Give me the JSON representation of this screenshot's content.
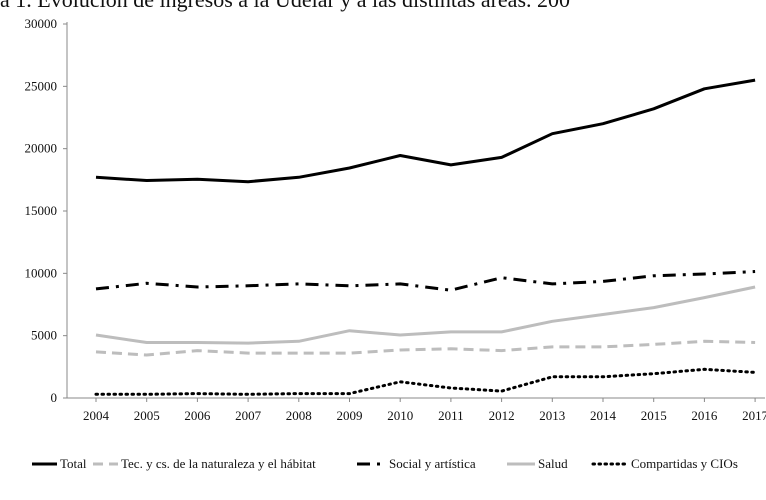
{
  "chart_data": {
    "type": "line",
    "title": "a 1. Evolución de ingresos a la Udelar y a las distintas áreas. 200",
    "xlabel": "",
    "ylabel": "",
    "ylim": [
      0,
      30000
    ],
    "yticks": [
      0,
      5000,
      10000,
      15000,
      20000,
      25000,
      30000
    ],
    "grid": false,
    "legend_position": "bottom",
    "categories": [
      "2004",
      "2005",
      "2006",
      "2007",
      "2008",
      "2009",
      "2010",
      "2011",
      "2012",
      "2013",
      "2014",
      "2015",
      "2016",
      "2017"
    ],
    "series": [
      {
        "name": "Total",
        "color": "#000000",
        "style": "solid",
        "values": [
          17700,
          17450,
          17550,
          17350,
          17700,
          18450,
          19450,
          18700,
          19300,
          21200,
          22000,
          23200,
          24800,
          25500
        ]
      },
      {
        "name": "Tec. y cs. de la naturaleza y el hábitat",
        "color": "#bdbdbd",
        "style": "dashed",
        "values": [
          3700,
          3450,
          3800,
          3600,
          3600,
          3600,
          3850,
          3950,
          3800,
          4100,
          4100,
          4300,
          4550,
          4450
        ]
      },
      {
        "name": "Social y artística",
        "color": "#000000",
        "style": "dash-dot",
        "values": [
          8750,
          9200,
          8900,
          9000,
          9150,
          9000,
          9150,
          8650,
          9650,
          9150,
          9350,
          9800,
          9950,
          10150
        ]
      },
      {
        "name": "Salud",
        "color": "#bdbdbd",
        "style": "solid",
        "values": [
          5050,
          4450,
          4450,
          4400,
          4550,
          5400,
          5050,
          5300,
          5300,
          6150,
          6700,
          7250,
          8050,
          8900
        ]
      },
      {
        "name": "Compartidas y CIOs",
        "color": "#000000",
        "style": "dotted",
        "values": [
          300,
          300,
          350,
          300,
          350,
          350,
          1300,
          800,
          550,
          1700,
          1700,
          1950,
          2300,
          2050
        ]
      }
    ]
  }
}
